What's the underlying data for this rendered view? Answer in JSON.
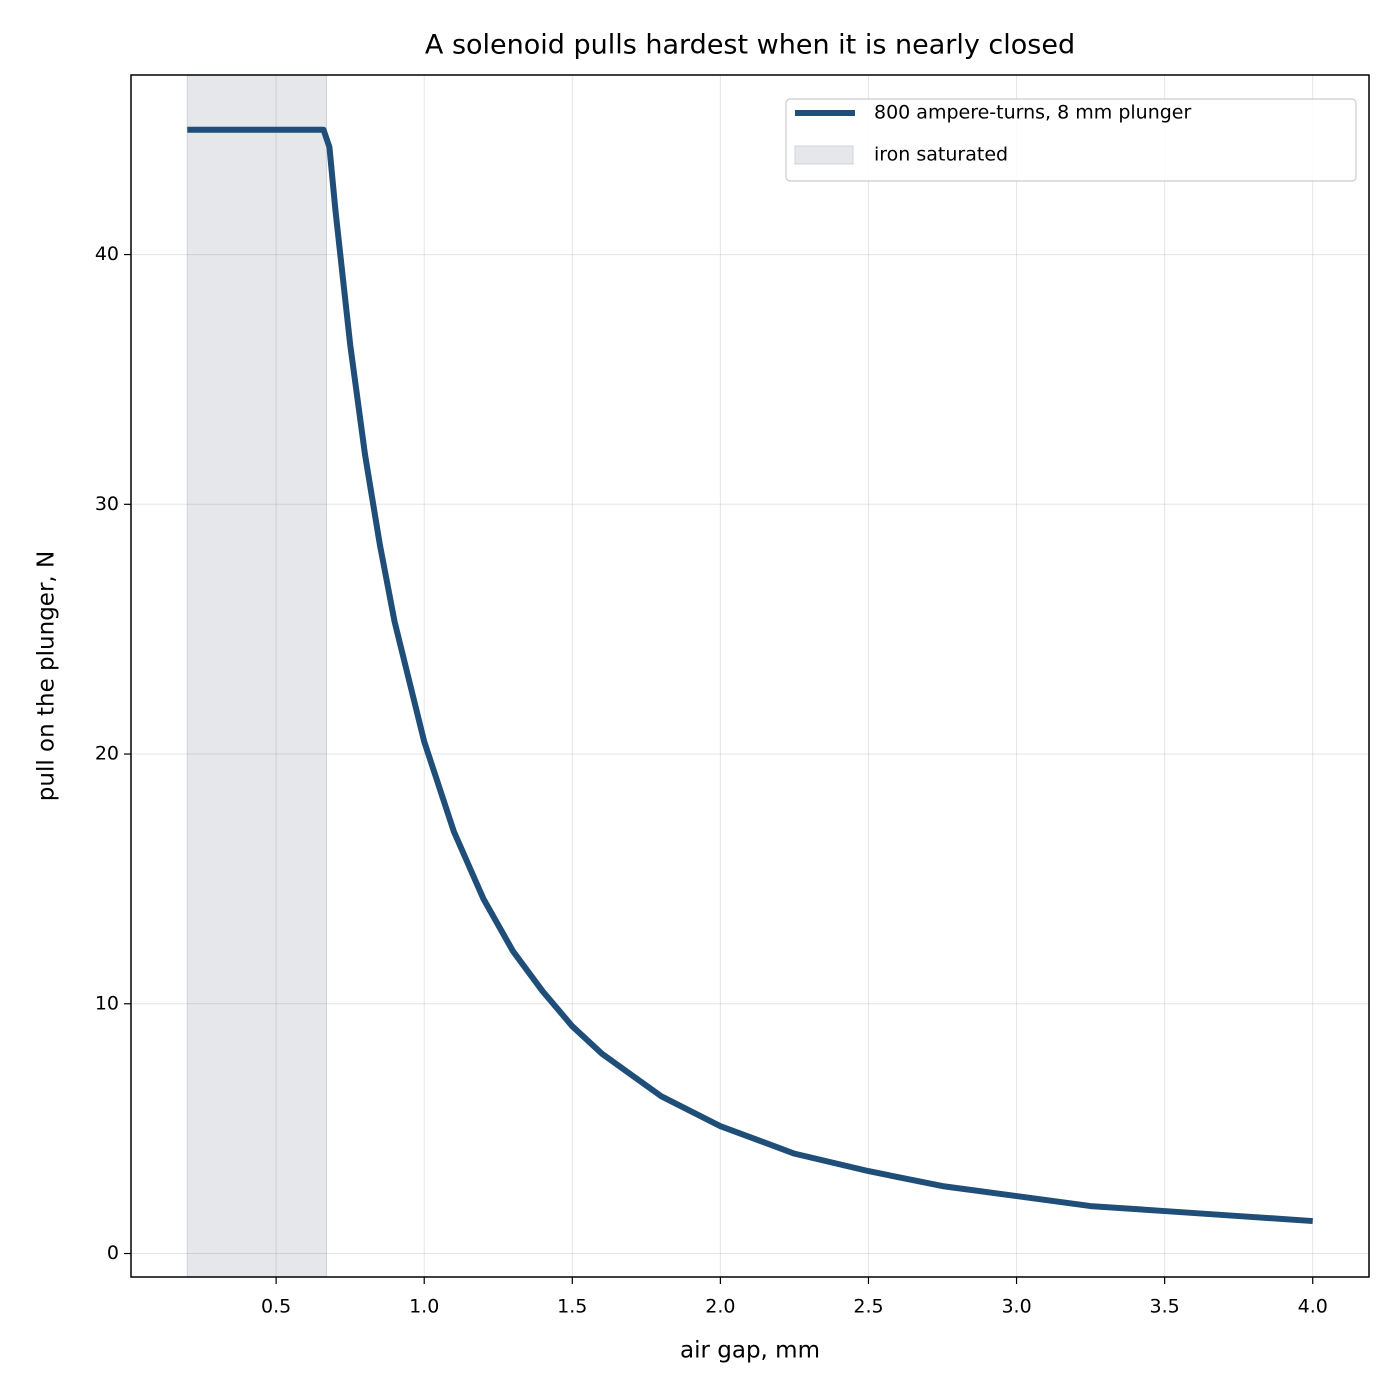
{
  "chart_data": {
    "type": "line",
    "title": "A solenoid pulls hardest when it is nearly closed",
    "xlabel": "air gap, mm",
    "ylabel": "pull on the plunger, N",
    "x": [
      0.2,
      0.3,
      0.4,
      0.5,
      0.6,
      0.66,
      0.68,
      0.7,
      0.75,
      0.8,
      0.85,
      0.9,
      1.0,
      1.1,
      1.2,
      1.3,
      1.4,
      1.5,
      1.6,
      1.8,
      2.0,
      2.25,
      2.5,
      2.75,
      3.0,
      3.25,
      3.5,
      3.75,
      4.0
    ],
    "series": [
      {
        "name": "800 ampere-turns, 8 mm plunger",
        "color": "#1f4e79",
        "values": [
          45,
          45,
          45,
          45,
          45,
          45,
          44.3,
          41.8,
          36.4,
          32.0,
          28.4,
          25.3,
          20.5,
          16.9,
          14.2,
          12.1,
          10.5,
          9.1,
          8.0,
          6.3,
          5.1,
          4.0,
          3.3,
          2.7,
          2.3,
          1.9,
          1.7,
          1.5,
          1.3
        ]
      }
    ],
    "shaded_span": {
      "label": "iron saturated",
      "x": [
        0.2,
        0.67
      ],
      "color": "#e6e7eb"
    },
    "xlim": [
      0.01,
      4.19
    ],
    "ylim": [
      -0.94,
      47.19
    ],
    "xticks": [
      0.5,
      {
        "value": 1,
        "label": "1.0"
      },
      1.5,
      {
        "value": 2,
        "label": "2.0"
      },
      2.5,
      {
        "value": 3,
        "label": "3.0"
      },
      3.5,
      {
        "value": 4,
        "label": "4.0"
      }
    ],
    "yticks": [
      0,
      10,
      20,
      30,
      40
    ],
    "grid": true,
    "legend": "upper right"
  }
}
